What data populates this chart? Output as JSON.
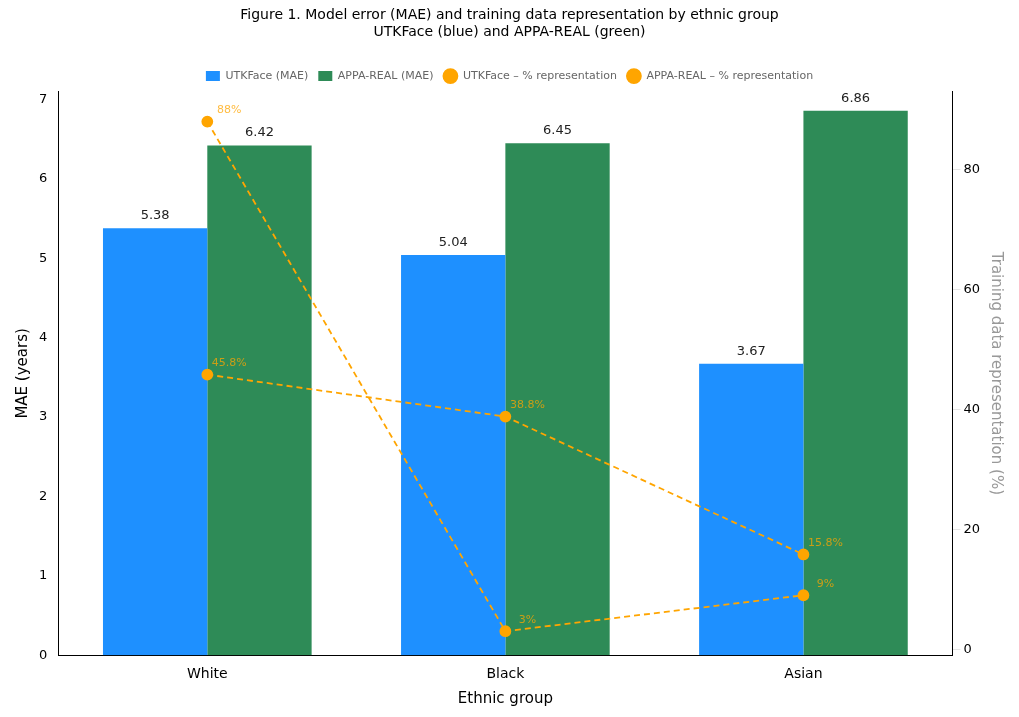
{
  "chart_data": {
    "type": "bar",
    "title": "Figure 1. Model error (MAE) and training data representation by ethnic group",
    "subtitle": "UTKFace (blue) and APPA-REAL (green)",
    "xlabel": "Ethnic group",
    "ylabel": "MAE (years)",
    "y2label": "Training data representation (%)",
    "categories": [
      "White",
      "Black",
      "Asian"
    ],
    "series": [
      {
        "name": "UTKFace (MAE)",
        "color": "#1e90ff",
        "values": [
          5.38,
          5.04,
          3.67
        ],
        "value_labels": [
          "5.38",
          "5.04",
          "3.67"
        ]
      },
      {
        "name": "APPA-REAL (MAE)",
        "color": "#2e8b57",
        "values": [
          6.42,
          6.45,
          6.86
        ],
        "value_labels": [
          "6.42",
          "6.45",
          "6.86"
        ]
      },
      {
        "name": "UTKFace – % representation",
        "type": "line",
        "axis": "y2",
        "color": "#ffa500",
        "values": [
          45.8,
          38.8,
          15.8
        ],
        "value_labels": [
          "45.8%",
          "38.8%",
          "15.8%"
        ]
      },
      {
        "name": "APPA-REAL – % representation",
        "type": "line",
        "axis": "y2",
        "color": "#ffa500",
        "values": [
          88,
          3,
          9
        ],
        "value_labels": [
          "88%",
          "3%",
          "9%"
        ]
      }
    ],
    "ylim": [
      0,
      7.1
    ],
    "yticks": [
      0,
      1,
      2,
      3,
      4,
      5,
      6,
      7
    ],
    "y2lim": [
      -1,
      93
    ],
    "y2ticks": [
      0,
      20,
      40,
      60,
      80
    ],
    "grid": false,
    "legend": "top",
    "marker": "circle",
    "line_style": "dashed"
  }
}
